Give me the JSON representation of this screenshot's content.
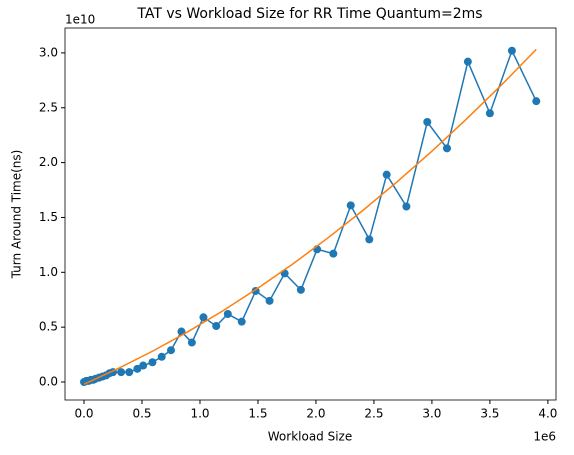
{
  "chart_data": {
    "type": "line",
    "title": "TAT vs Workload Size for RR Time Quantum=2ms",
    "xlabel": "Workload Size",
    "ylabel": "Turn Around Time(ns)",
    "x_offset_label": "1e6",
    "y_offset_label": "1e10",
    "xlim": [
      -0.164,
      4.07
    ],
    "ylim": [
      -0.164,
      3.227
    ],
    "xticks": [
      {
        "value": 0,
        "label": "0.0"
      },
      0.5,
      {
        "value": 1,
        "label": "1.0"
      },
      1.5,
      {
        "value": 2,
        "label": "2.0"
      },
      2.5,
      {
        "value": 3,
        "label": "3.0"
      },
      3.5,
      {
        "value": 4,
        "label": "4.0"
      }
    ],
    "yticks": [
      {
        "value": 0,
        "label": "0.0"
      },
      0.5,
      {
        "value": 1,
        "label": "1.0"
      },
      1.5,
      {
        "value": 2,
        "label": "2.0"
      },
      2.5,
      {
        "value": 3,
        "label": "3.0"
      }
    ],
    "grid": false,
    "series": [
      {
        "color": "#1f77b4",
        "marker": "o",
        "x": [
          0,
          0.02,
          0.04,
          0.06,
          0.08,
          0.1,
          0.13,
          0.16,
          0.19,
          0.22,
          0.25,
          0.32,
          0.39,
          0.46,
          0.51,
          0.59,
          0.67,
          0.75,
          0.84,
          0.93,
          1.03,
          1.14,
          1.24,
          1.36,
          1.48,
          1.6,
          1.73,
          1.87,
          2.01,
          2.15,
          2.3,
          2.46,
          2.61,
          2.78,
          2.96,
          3.13,
          3.31,
          3.5,
          3.69,
          3.9
        ],
        "values": [
          0,
          0.01,
          0.01,
          0.02,
          0.02,
          0.03,
          0.04,
          0.05,
          0.06,
          0.08,
          0.09,
          0.09,
          0.09,
          0.12,
          0.15,
          0.18,
          0.23,
          0.29,
          0.46,
          0.36,
          0.59,
          0.51,
          0.62,
          0.55,
          0.83,
          0.74,
          0.99,
          0.84,
          1.21,
          1.17,
          1.61,
          1.3,
          1.89,
          1.6,
          2.37,
          2.13,
          2.92,
          2.45,
          3.02,
          2.56
        ]
      },
      {
        "color": "#ff7f0e",
        "x": [
          0,
          0.3,
          0.6,
          0.9,
          1.2,
          1.5,
          1.8,
          2.1,
          2.4,
          2.7,
          3.0,
          3.3,
          3.6,
          3.9
        ],
        "values": [
          -0.02,
          0.126,
          0.286,
          0.461,
          0.651,
          0.856,
          1.076,
          1.311,
          1.56,
          1.825,
          2.104,
          2.399,
          2.708,
          3.032
        ]
      }
    ]
  }
}
